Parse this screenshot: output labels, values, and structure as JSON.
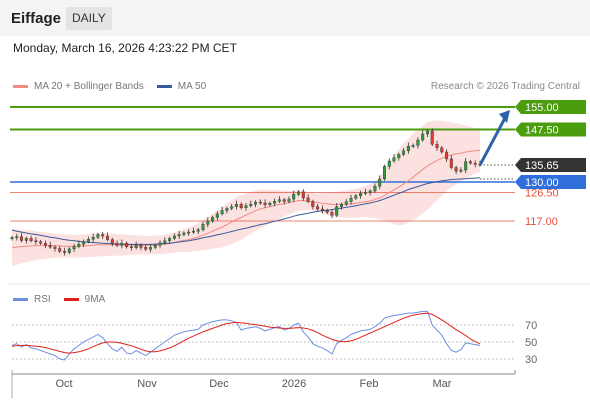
{
  "header": {
    "title": "Eiffage",
    "timeframe": "DAILY"
  },
  "datetime": "Monday, March 16, 2026 4:23:22 PM CET",
  "legend": {
    "main": [
      {
        "label": "MA 20 + Bollinger Bands",
        "color": "#f28b82"
      },
      {
        "label": "MA 50",
        "color": "#3b5a9a"
      }
    ],
    "rsi": [
      {
        "label": "RSI",
        "color": "#6d8fe0"
      },
      {
        "label": "9MA",
        "color": "#e0201b"
      }
    ]
  },
  "credit": "Research © 2026 Trading Central",
  "colors": {
    "up": "#2e9e3a",
    "down": "#e23b33",
    "target": "#4a9e0e",
    "support": "#2f6fdc",
    "red_level": "#e84e3c",
    "last": "#333333",
    "band_fill": "#fbdcdc",
    "ma20": "#f28b82",
    "ma50": "#3b5a9a",
    "rsi": "#6d8fe0",
    "rsi_ma": "#e0201b",
    "arrow": "#2c63a8"
  },
  "chart_data": [
    {
      "type": "candlestick",
      "name": "price",
      "x_ticks": [
        "Oct",
        "Nov",
        "Dec",
        "2026",
        "Feb",
        "Mar"
      ],
      "levels": [
        {
          "value": 155.0,
          "label": "155.00",
          "kind": "target"
        },
        {
          "value": 147.5,
          "label": "147.50",
          "kind": "target"
        },
        {
          "value": 135.65,
          "label": "135.65",
          "kind": "last"
        },
        {
          "value": 130.0,
          "label": "130.00",
          "kind": "support"
        },
        {
          "value": 126.5,
          "label": "126.50",
          "kind": "red"
        },
        {
          "value": 117.0,
          "label": "117.00",
          "kind": "red"
        }
      ],
      "arrow": {
        "from": 135.65,
        "to": 155.0
      },
      "closes": [
        111.5,
        111.8,
        110.5,
        111.2,
        110.4,
        110.1,
        109.6,
        108.9,
        108.3,
        107.8,
        106.9,
        106.5,
        107.7,
        108.5,
        109.3,
        110.2,
        110.9,
        111.6,
        112.5,
        112.0,
        110.8,
        109.6,
        108.9,
        109.6,
        108.4,
        108.1,
        108.9,
        108.2,
        107.6,
        108.2,
        108.9,
        109.7,
        110.4,
        111.2,
        112.0,
        112.5,
        113.0,
        113.3,
        113.6,
        114.1,
        115.9,
        117.0,
        118.2,
        119.4,
        120.5,
        121.2,
        121.8,
        122.6,
        121.4,
        122.1,
        122.6,
        123.3,
        123.0,
        122.4,
        122.9,
        123.6,
        124.1,
        123.5,
        124.3,
        125.9,
        126.7,
        124.7,
        123.5,
        121.8,
        121.0,
        120.5,
        119.9,
        118.9,
        121.8,
        122.6,
        123.4,
        124.6,
        125.4,
        126.2,
        126.5,
        127.0,
        128.6,
        131.0,
        135.2,
        137.0,
        138.1,
        139.2,
        140.4,
        141.9,
        142.2,
        144.0,
        146.0,
        147.0,
        142.6,
        141.4,
        140.0,
        137.7,
        134.8,
        133.6,
        134.0,
        136.8,
        136.3,
        135.9,
        135.65
      ],
      "ma20": [
        108.1,
        108.3,
        108.5,
        108.6,
        108.7,
        108.8,
        108.8,
        108.8,
        108.8,
        108.8,
        108.7,
        108.6,
        108.6,
        108.6,
        108.6,
        108.7,
        108.8,
        108.9,
        109.1,
        109.1,
        109.1,
        109.1,
        109.0,
        109.0,
        109.0,
        109.0,
        109.0,
        109.0,
        108.9,
        108.9,
        109.0,
        109.1,
        109.3,
        109.5,
        109.8,
        110.2,
        110.5,
        110.8,
        111.2,
        111.6,
        112.3,
        112.9,
        113.6,
        114.3,
        115.0,
        115.8,
        116.6,
        117.5,
        118.2,
        119.0,
        119.7,
        120.4,
        121.0,
        121.4,
        121.8,
        122.2,
        122.5,
        122.8,
        123.1,
        123.5,
        123.8,
        123.8,
        123.6,
        123.4,
        123.2,
        122.9,
        122.7,
        122.5,
        122.5,
        122.6,
        122.6,
        122.7,
        122.9,
        123.2,
        123.4,
        123.7,
        124.1,
        124.7,
        125.5,
        126.5,
        127.4,
        128.3,
        129.3,
        130.5,
        131.6,
        132.9,
        134.2,
        135.4,
        136.3,
        137.2,
        137.9,
        138.6,
        139.0,
        139.4,
        139.6,
        140.0,
        140.2,
        140.4,
        140.5
      ],
      "bb_upper": [
        114.3,
        114.2,
        114.1,
        113.9,
        113.8,
        113.6,
        113.4,
        113.2,
        113.0,
        112.8,
        112.6,
        112.4,
        112.4,
        112.4,
        112.4,
        112.5,
        112.6,
        112.8,
        113.0,
        113.0,
        112.9,
        112.8,
        112.6,
        112.5,
        112.4,
        112.3,
        112.2,
        112.1,
        112.0,
        112.0,
        112.1,
        112.2,
        112.5,
        112.8,
        113.2,
        113.7,
        114.3,
        114.9,
        115.5,
        116.2,
        117.3,
        118.4,
        119.5,
        120.6,
        121.8,
        122.9,
        124.0,
        125.0,
        125.6,
        126.2,
        126.7,
        127.1,
        127.4,
        127.4,
        127.4,
        127.4,
        127.3,
        127.1,
        127.0,
        127.1,
        127.2,
        127.0,
        126.6,
        126.3,
        126.1,
        126.2,
        126.4,
        126.6,
        126.8,
        127.0,
        127.2,
        127.4,
        127.7,
        128.1,
        128.6,
        129.3,
        130.3,
        131.8,
        134.0,
        136.5,
        139.0,
        141.0,
        142.8,
        144.5,
        146.0,
        147.5,
        148.8,
        150.0,
        150.3,
        150.5,
        150.4,
        150.2,
        149.9,
        149.6,
        149.2,
        148.8,
        148.4,
        148.0,
        147.8
      ],
      "bb_lower": [
        101.9,
        102.4,
        102.9,
        103.3,
        103.6,
        104.0,
        104.2,
        104.4,
        104.6,
        104.8,
        104.8,
        104.8,
        104.8,
        104.8,
        104.8,
        104.9,
        105.0,
        105.0,
        105.2,
        105.2,
        105.3,
        105.4,
        105.4,
        105.5,
        105.6,
        105.7,
        105.8,
        105.9,
        105.8,
        105.8,
        105.9,
        106.0,
        106.1,
        106.2,
        106.4,
        106.7,
        106.7,
        106.7,
        106.9,
        107.0,
        107.3,
        107.4,
        107.7,
        108.0,
        108.2,
        108.7,
        109.2,
        110.0,
        110.8,
        111.8,
        112.7,
        113.7,
        114.6,
        115.4,
        116.2,
        117.0,
        117.7,
        118.5,
        119.2,
        119.9,
        120.4,
        120.6,
        120.6,
        120.5,
        120.3,
        119.6,
        119.0,
        118.4,
        118.2,
        118.2,
        118.0,
        118.0,
        118.1,
        118.3,
        118.2,
        118.1,
        117.9,
        117.6,
        117.0,
        116.5,
        115.8,
        115.6,
        115.8,
        116.5,
        117.2,
        118.3,
        119.6,
        120.8,
        122.3,
        123.9,
        125.4,
        127.0,
        128.1,
        129.2,
        130.0,
        131.2,
        132.0,
        132.8,
        133.2
      ],
      "ma50": [
        114.0,
        113.6,
        113.3,
        113.0,
        112.7,
        112.5,
        112.2,
        111.9,
        111.6,
        111.4,
        111.1,
        110.8,
        110.6,
        110.4,
        110.2,
        110.0,
        109.9,
        109.8,
        109.7,
        109.6,
        109.5,
        109.4,
        109.3,
        109.3,
        109.2,
        109.2,
        109.2,
        109.2,
        109.2,
        109.2,
        109.3,
        109.4,
        109.5,
        109.6,
        109.8,
        110.0,
        110.2,
        110.4,
        110.7,
        111.0,
        111.4,
        111.7,
        112.0,
        112.4,
        112.7,
        113.1,
        113.5,
        113.9,
        114.3,
        114.6,
        115.0,
        115.4,
        115.8,
        116.1,
        116.5,
        116.9,
        117.3,
        117.7,
        118.1,
        118.6,
        119.0,
        119.3,
        119.6,
        119.9,
        120.2,
        120.4,
        120.6,
        120.8,
        121.1,
        121.3,
        121.6,
        121.8,
        122.1,
        122.4,
        122.7,
        123.0,
        123.4,
        123.8,
        124.4,
        125.0,
        125.6,
        126.2,
        126.8,
        127.5,
        128.0,
        128.5,
        129.0,
        129.5,
        129.8,
        130.1,
        130.4,
        130.6,
        130.8,
        130.9,
        131.0,
        131.1,
        131.2,
        131.3,
        131.4
      ]
    },
    {
      "type": "line",
      "name": "rsi",
      "y_ticks": [
        "70",
        "50",
        "30"
      ],
      "rsi": [
        46,
        48,
        44,
        47,
        43,
        42,
        40,
        38,
        36,
        34,
        30,
        29,
        36,
        42,
        46,
        50,
        53,
        56,
        59,
        55,
        48,
        42,
        39,
        44,
        37,
        36,
        40,
        37,
        34,
        38,
        42,
        46,
        50,
        54,
        58,
        60,
        62,
        63,
        64,
        65,
        70,
        72,
        74,
        75,
        76,
        76,
        75,
        73,
        64,
        66,
        67,
        68,
        66,
        63,
        65,
        67,
        68,
        64,
        66,
        70,
        72,
        62,
        56,
        48,
        45,
        43,
        40,
        36,
        48,
        52,
        55,
        59,
        61,
        63,
        64,
        65,
        68,
        72,
        78,
        80,
        81,
        82,
        83,
        84,
        84,
        85,
        86,
        86,
        70,
        64,
        58,
        48,
        40,
        38,
        41,
        49,
        48,
        47,
        46
      ],
      "rsi_ma": [
        45,
        45.5,
        46,
        46,
        45.5,
        45,
        44.5,
        43.5,
        42,
        40.5,
        39,
        37.5,
        37,
        37.5,
        38.5,
        40,
        42,
        44.5,
        47,
        49,
        50,
        50,
        49.5,
        48.5,
        47,
        45.5,
        43.5,
        41.5,
        39.5,
        38.5,
        38.5,
        39.5,
        41,
        43,
        45.5,
        48.5,
        51.5,
        54.5,
        57,
        59.5,
        62,
        64,
        66,
        68,
        70,
        71.5,
        72.5,
        73,
        72.5,
        72,
        71,
        70.5,
        69.5,
        68.5,
        67.5,
        67,
        66.5,
        66,
        66,
        66.5,
        67,
        66.5,
        65.5,
        63.5,
        61,
        58,
        55.5,
        53,
        51.5,
        50.5,
        50.5,
        51.5,
        53,
        55.5,
        58,
        60.5,
        63,
        65.5,
        68,
        70.5,
        73,
        75.5,
        78,
        80,
        81.5,
        82.5,
        83.5,
        84,
        82.5,
        79.5,
        76,
        72.5,
        68.5,
        64.5,
        61,
        57.5,
        53.5,
        50.5,
        48
      ]
    }
  ]
}
